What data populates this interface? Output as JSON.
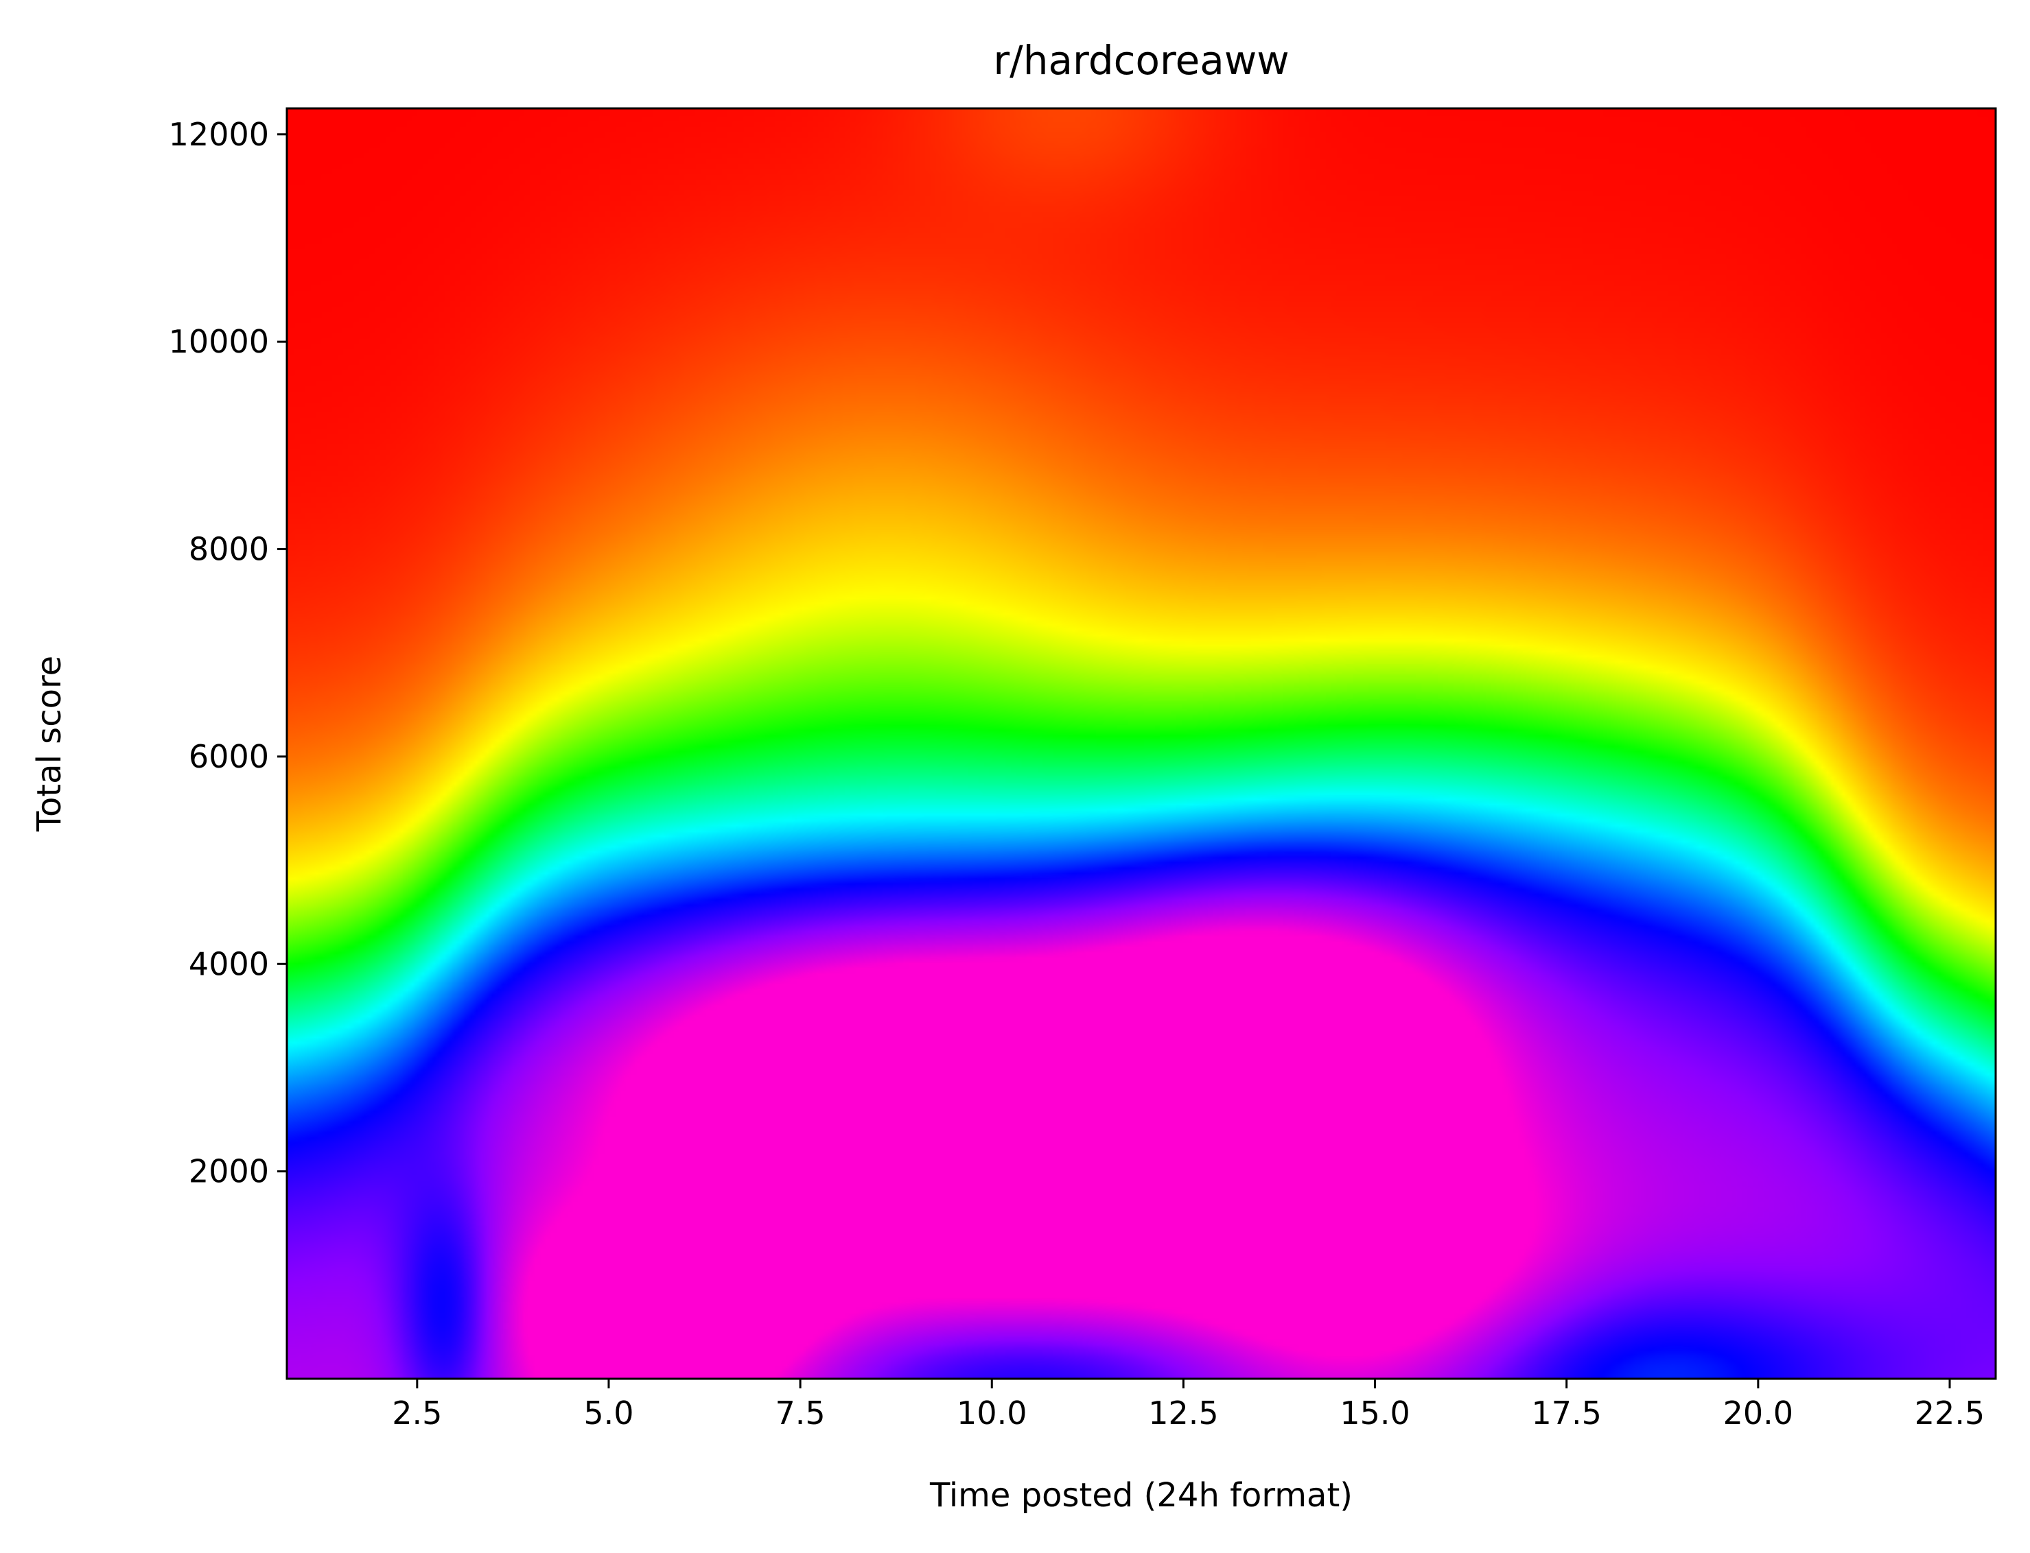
{
  "chart_data": {
    "type": "heatmap",
    "title": "r/hardcoreaww",
    "xlabel": "Time posted (24h format)",
    "ylabel": "Total score",
    "xlim": [
      0.8,
      23.1
    ],
    "ylim": [
      0,
      12250
    ],
    "xticks": [
      2.5,
      5.0,
      7.5,
      10.0,
      12.5,
      15.0,
      17.5,
      20.0,
      22.5
    ],
    "xtick_labels": [
      "2.5",
      "5.0",
      "7.5",
      "10.0",
      "12.5",
      "15.0",
      "17.5",
      "20.0",
      "22.5"
    ],
    "yticks": [
      2000,
      4000,
      6000,
      8000,
      10000,
      12000
    ],
    "ytick_labels": [
      "2000",
      "4000",
      "6000",
      "8000",
      "10000",
      "12000"
    ],
    "colormap": "gist_rainbow",
    "colormap_stops": [
      "#ff0029",
      "#ff0000",
      "#ffff00",
      "#00ff00",
      "#00ffff",
      "#0000ff",
      "#ff00ff"
    ],
    "grid": false,
    "field_description": {
      "low_value_region_center": [
        11.5,
        2800
      ],
      "high_value_region": "top (scores above ~6500)"
    }
  }
}
